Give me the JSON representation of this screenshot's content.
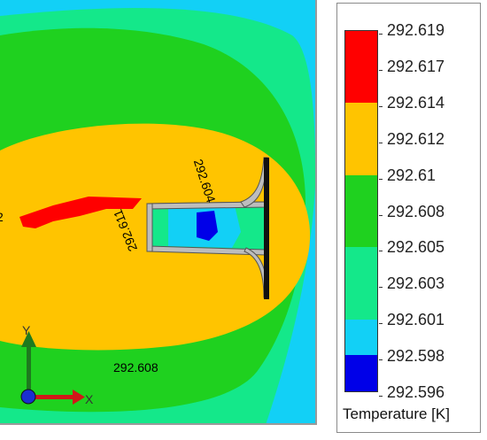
{
  "viewport": {
    "probes": {
      "bottom": "292.608",
      "right": "292.604",
      "left": "292.611",
      "edge": "2"
    },
    "triad": {
      "y_label": "Y",
      "x_label": "X"
    }
  },
  "legend": {
    "title": "Temperature [K]",
    "values": [
      "292.619",
      "292.617",
      "292.614",
      "292.612",
      "292.61",
      "292.608",
      "292.605",
      "292.603",
      "292.601",
      "292.598",
      "292.596"
    ],
    "band_colors": [
      "#ff0000",
      "#ff0000",
      "#ffc400",
      "#ffc400",
      "#1fd11f",
      "#1fd11f",
      "#14e88a",
      "#14e88a",
      "#12d0f6",
      "#0000e8"
    ]
  },
  "colors": {
    "cyan": "#12d0f6",
    "teal": "#14e88a",
    "green": "#1fd11f",
    "orange": "#ffc400",
    "red": "#ff0000",
    "blue": "#0000e8"
  }
}
